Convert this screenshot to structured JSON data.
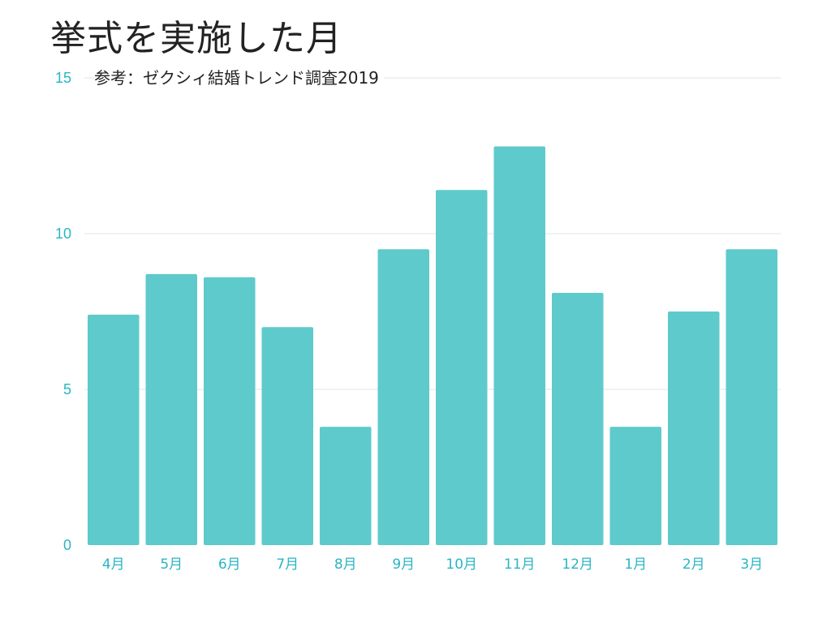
{
  "colors": {
    "bar": "#5ecacc",
    "axis_text": "#2bb5c4",
    "grid": "#eef2f5",
    "text": "#222222"
  },
  "chart_data": {
    "type": "bar",
    "title": "挙式を実施した月",
    "subtitle": "参考：ゼクシィ結婚トレンド調査2019",
    "xlabel": "",
    "ylabel": "",
    "categories": [
      "4月",
      "5月",
      "6月",
      "7月",
      "8月",
      "9月",
      "10月",
      "11月",
      "12月",
      "1月",
      "2月",
      "3月"
    ],
    "values": [
      7.4,
      8.7,
      8.6,
      7.0,
      3.8,
      9.5,
      11.4,
      12.8,
      8.1,
      3.8,
      7.5,
      9.5
    ],
    "ylim": [
      0,
      15
    ],
    "yticks": [
      0,
      5,
      10,
      15
    ],
    "grid": true,
    "legend": "none"
  }
}
